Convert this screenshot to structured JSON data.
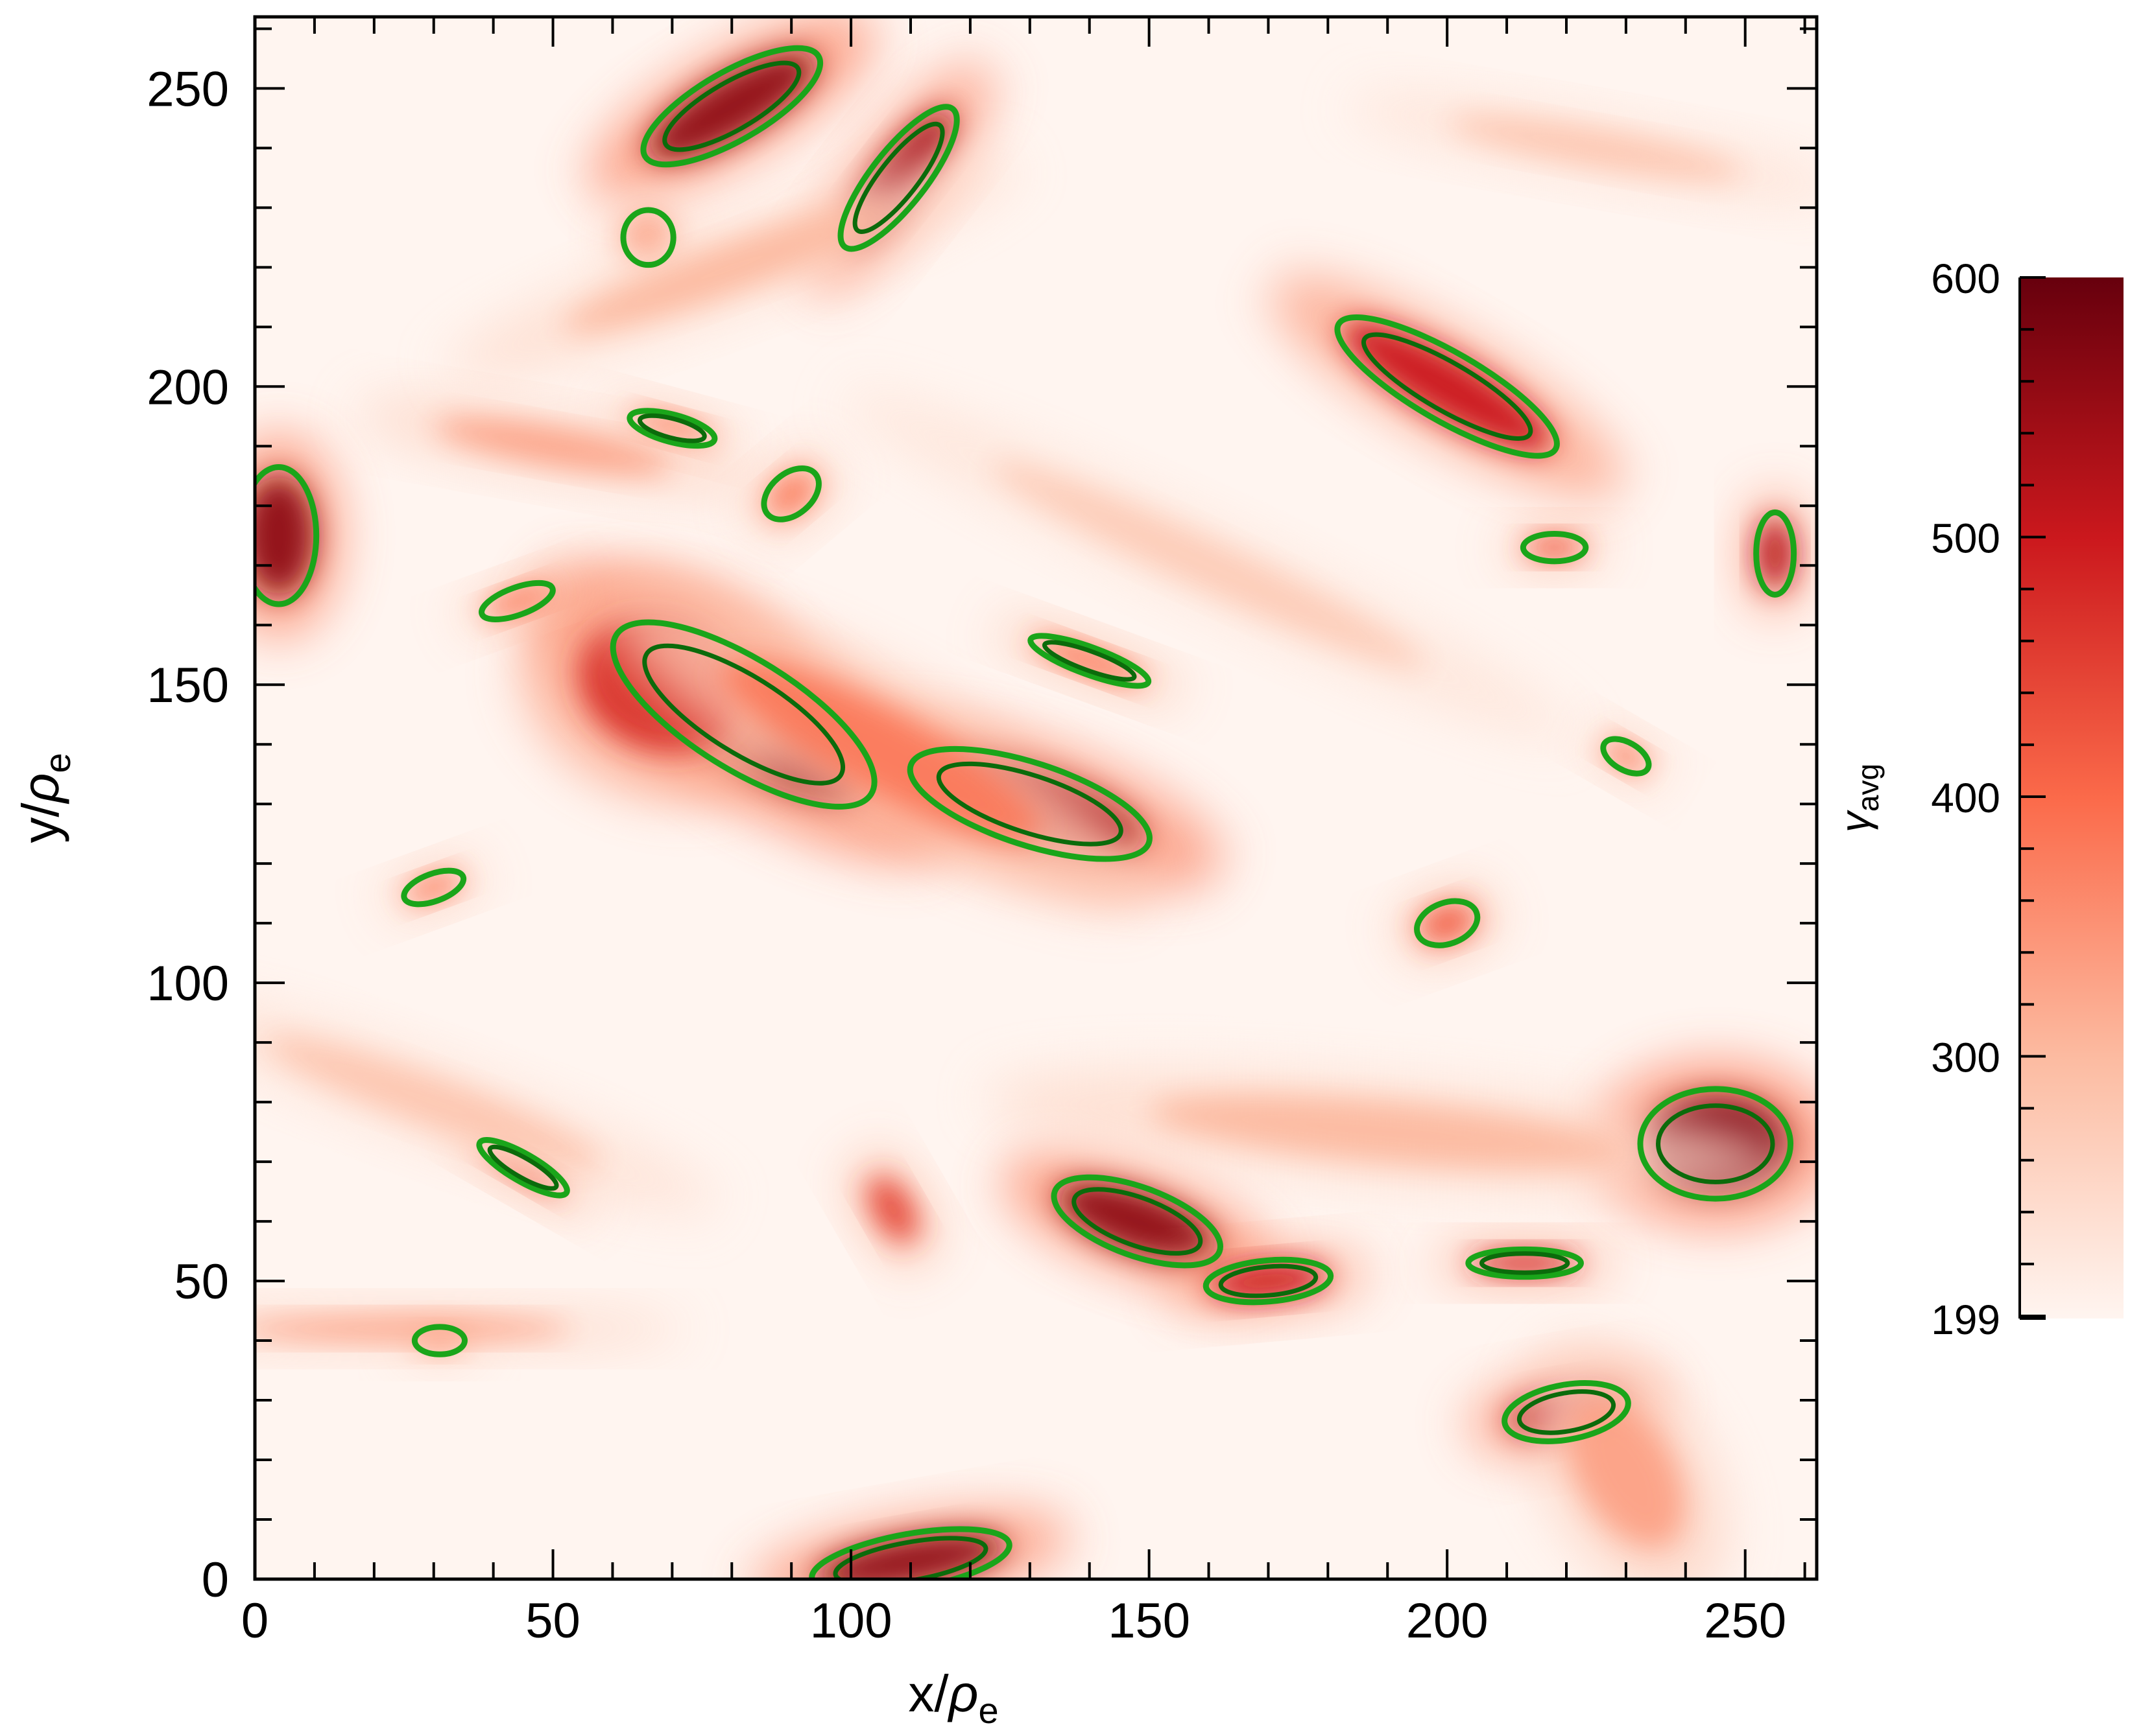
{
  "chart_data": {
    "type": "heatmap",
    "title": "",
    "xlabel": {
      "main": "x/",
      "greek": "ρ",
      "sub": "e"
    },
    "ylabel": {
      "main": "y/",
      "greek": "ρ",
      "sub": "e"
    },
    "xlim": [
      0,
      262
    ],
    "ylim": [
      0,
      262
    ],
    "x_ticks": [
      0,
      50,
      100,
      150,
      200,
      250
    ],
    "y_ticks": [
      0,
      50,
      100,
      150,
      200,
      250
    ],
    "x_tick_labels": [
      "0",
      "50",
      "100",
      "150",
      "200",
      "250"
    ],
    "y_tick_labels": [
      "0",
      "50",
      "100",
      "150",
      "200",
      "250"
    ],
    "minor_tick_step": 10,
    "grid": false,
    "colorbar": {
      "label": {
        "greek": "γ",
        "sub": "avg"
      },
      "min": 199,
      "max": 600,
      "ticks": [
        199,
        300,
        400,
        500,
        600
      ],
      "tick_labels": [
        "199",
        "300",
        "400",
        "500",
        "600"
      ],
      "colormap": [
        "#fff5f0",
        "#fcbba1",
        "#fb6a4a",
        "#cb181d",
        "#67000d"
      ]
    },
    "contour_color": "#1aa51a",
    "contour_color_inner": "#0b6b0b",
    "background_value": 199,
    "regions": [
      {
        "x": 82,
        "y": 145,
        "rx": 24,
        "ry": 8,
        "angle": -32,
        "value": 560,
        "contour": true
      },
      {
        "x": 68,
        "y": 150,
        "rx": 14,
        "ry": 11,
        "angle": -20,
        "value": 470,
        "contour": false
      },
      {
        "x": 130,
        "y": 130,
        "rx": 20,
        "ry": 6,
        "angle": -18,
        "value": 540,
        "contour": true
      },
      {
        "x": 105,
        "y": 139,
        "rx": 30,
        "ry": 7,
        "angle": -28,
        "value": 380,
        "contour": false
      },
      {
        "x": 80,
        "y": 247,
        "rx": 16,
        "ry": 5,
        "angle": 30,
        "value": 560,
        "contour": true
      },
      {
        "x": 108,
        "y": 235,
        "rx": 14,
        "ry": 4,
        "angle": 52,
        "value": 540,
        "contour": true
      },
      {
        "x": 66,
        "y": 225,
        "rx": 4,
        "ry": 4,
        "angle": 0,
        "value": 330,
        "contour": true
      },
      {
        "x": 200,
        "y": 200,
        "rx": 20,
        "ry": 5,
        "angle": -30,
        "value": 500,
        "contour": true
      },
      {
        "x": 4,
        "y": 175,
        "rx": 6,
        "ry": 10,
        "angle": 0,
        "value": 560,
        "contour": true
      },
      {
        "x": 148,
        "y": 60,
        "rx": 14,
        "ry": 5,
        "angle": -20,
        "value": 560,
        "contour": true
      },
      {
        "x": 170,
        "y": 50,
        "rx": 10,
        "ry": 3,
        "angle": 5,
        "value": 500,
        "contour": true
      },
      {
        "x": 245,
        "y": 73,
        "rx": 12,
        "ry": 8,
        "angle": 0,
        "value": 580,
        "contour": true
      },
      {
        "x": 220,
        "y": 28,
        "rx": 10,
        "ry": 4,
        "angle": 10,
        "value": 520,
        "contour": true
      },
      {
        "x": 110,
        "y": 3,
        "rx": 16,
        "ry": 4,
        "angle": 10,
        "value": 560,
        "contour": true
      },
      {
        "x": 213,
        "y": 53,
        "rx": 9,
        "ry": 2,
        "angle": 0,
        "value": 480,
        "contour": true
      },
      {
        "x": 200,
        "y": 110,
        "rx": 5,
        "ry": 3,
        "angle": 20,
        "value": 420,
        "contour": true
      },
      {
        "x": 45,
        "y": 69,
        "rx": 8,
        "ry": 2,
        "angle": -30,
        "value": 420,
        "contour": true
      },
      {
        "x": 230,
        "y": 138,
        "rx": 4,
        "ry": 2,
        "angle": -30,
        "value": 380,
        "contour": true
      },
      {
        "x": 140,
        "y": 154,
        "rx": 10,
        "ry": 2,
        "angle": -20,
        "value": 400,
        "contour": true
      },
      {
        "x": 30,
        "y": 116,
        "rx": 5,
        "ry": 2,
        "angle": 20,
        "value": 380,
        "contour": true
      },
      {
        "x": 70,
        "y": 193,
        "rx": 7,
        "ry": 2,
        "angle": -15,
        "value": 380,
        "contour": true
      },
      {
        "x": 90,
        "y": 182,
        "rx": 5,
        "ry": 3,
        "angle": 40,
        "value": 380,
        "contour": true
      },
      {
        "x": 44,
        "y": 164,
        "rx": 6,
        "ry": 2,
        "angle": 20,
        "value": 380,
        "contour": true
      },
      {
        "x": 31,
        "y": 40,
        "rx": 4,
        "ry": 2,
        "angle": 0,
        "value": 330,
        "contour": true
      },
      {
        "x": 255,
        "y": 172,
        "rx": 3,
        "ry": 6,
        "angle": 0,
        "value": 520,
        "contour": true
      },
      {
        "x": 218,
        "y": 173,
        "rx": 5,
        "ry": 2,
        "angle": 0,
        "value": 420,
        "contour": true
      },
      {
        "x": 25,
        "y": 42,
        "rx": 28,
        "ry": 2,
        "angle": 0,
        "value": 330,
        "contour": false
      },
      {
        "x": 50,
        "y": 190,
        "rx": 20,
        "ry": 3,
        "angle": -10,
        "value": 330,
        "contour": false
      },
      {
        "x": 107,
        "y": 62,
        "rx": 3,
        "ry": 6,
        "angle": 30,
        "value": 450,
        "contour": false
      },
      {
        "x": 230,
        "y": 18,
        "rx": 8,
        "ry": 14,
        "angle": 30,
        "value": 330,
        "contour": false
      },
      {
        "x": 80,
        "y": 220,
        "rx": 30,
        "ry": 4,
        "angle": 20,
        "value": 300,
        "contour": false
      },
      {
        "x": 30,
        "y": 80,
        "rx": 30,
        "ry": 4,
        "angle": -20,
        "value": 280,
        "contour": false
      },
      {
        "x": 190,
        "y": 75,
        "rx": 40,
        "ry": 5,
        "angle": -5,
        "value": 300,
        "contour": false
      },
      {
        "x": 160,
        "y": 170,
        "rx": 40,
        "ry": 4,
        "angle": -25,
        "value": 270,
        "contour": false
      },
      {
        "x": 225,
        "y": 240,
        "rx": 25,
        "ry": 3,
        "angle": -10,
        "value": 280,
        "contour": false
      }
    ]
  }
}
